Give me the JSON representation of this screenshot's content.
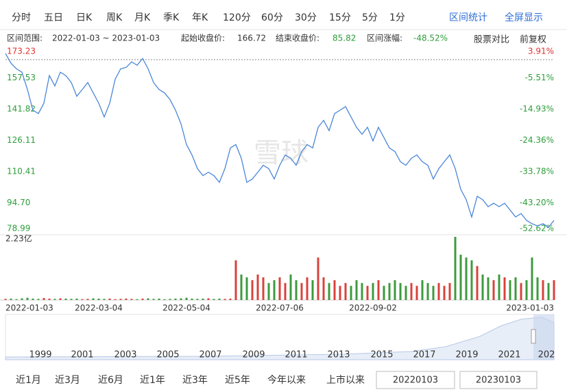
{
  "tabs": [
    "分时",
    "五日",
    "日K",
    "周K",
    "月K",
    "季K",
    "年K",
    "120分",
    "60分",
    "30分",
    "15分",
    "5分",
    "1分"
  ],
  "actions": [
    "区间统计",
    "全屏显示"
  ],
  "info": {
    "range_label": "区间范围:",
    "range": "2022-01-03 ~ 2023-01-03",
    "start_label": "起始收盘价:",
    "start_value": 166.72,
    "end_label": "结束收盘价:",
    "end_value": 85.82,
    "change_label": "区间涨幅:",
    "change_value": "-48.52%"
  },
  "toggles": [
    "股票对比",
    "前复权"
  ],
  "watermark": "雪球",
  "chart_data": {
    "type": "line",
    "color": "#4a86d8",
    "values": [
      169.8,
      164.9,
      162.1,
      160.4,
      151.7,
      141.3,
      139.6,
      144.8,
      158.7,
      153.5,
      160.4,
      158.7,
      155.2,
      148.3,
      151.7,
      155.2,
      150.0,
      144.8,
      137.9,
      144.8,
      156.9,
      162.1,
      162.8,
      165.6,
      163.9,
      167.3,
      162.1,
      155.2,
      151.7,
      150.0,
      146.6,
      141.3,
      134.4,
      124.0,
      118.8,
      111.9,
      108.4,
      110.1,
      108.4,
      105.0,
      111.9,
      122.3,
      124.0,
      117.1,
      105.0,
      106.7,
      110.1,
      113.6,
      111.9,
      106.7,
      113.6,
      118.8,
      117.1,
      113.6,
      120.5,
      124.0,
      122.3,
      132.7,
      136.2,
      131.0,
      139.6,
      141.3,
      143.1,
      137.9,
      132.7,
      129.2,
      132.7,
      125.8,
      132.7,
      127.5,
      122.3,
      120.5,
      115.4,
      113.6,
      117.1,
      118.8,
      115.4,
      113.6,
      106.7,
      111.9,
      115.4,
      118.8,
      111.9,
      101.5,
      96.3,
      87.6,
      98.0,
      96.3,
      92.8,
      94.5,
      92.8,
      94.5,
      91.1,
      87.6,
      89.3,
      85.9,
      84.2,
      83.1,
      84.2,
      82.4,
      85.9
    ],
    "xlim": [
      0,
      100
    ],
    "xticks": [
      {
        "value": 0,
        "label": "2022-01-03"
      },
      {
        "value": 17,
        "label": "2022-03-04"
      },
      {
        "value": 33,
        "label": "2022-05-04"
      },
      {
        "value": 50,
        "label": "2022-07-06"
      },
      {
        "value": 67,
        "label": "2022-09-02"
      },
      {
        "value": 100,
        "label": "2023-01-03"
      }
    ],
    "ylim": [
      78.99,
      173.23
    ],
    "yticks": [
      173.23,
      157.53,
      141.82,
      126.11,
      110.41,
      {
        "value": 94.7,
        "label": "94.70"
      },
      78.99
    ],
    "y2lim": [
      -52.62,
      3.91
    ],
    "y2ticks": [
      {
        "value": 3.91,
        "label": "3.91%"
      },
      {
        "value": -5.51,
        "label": "-5.51%"
      },
      {
        "value": -14.93,
        "label": "-14.93%"
      },
      {
        "value": -24.36,
        "label": "-24.36%"
      },
      {
        "value": -33.78,
        "label": "-33.78%"
      },
      {
        "value": -43.2,
        "label": "-43.20%"
      },
      {
        "value": -52.62,
        "label": "-52.62%"
      }
    ],
    "volume": {
      "values": [
        0.04,
        0.05,
        0.03,
        0.06,
        0.08,
        0.05,
        0.04,
        0.07,
        0.05,
        0.04,
        0.06,
        0.05,
        0.04,
        0.05,
        0.03,
        0.04,
        0.06,
        0.05,
        0.04,
        0.05,
        0.03,
        0.04,
        0.05,
        0.04,
        0.03,
        0.05,
        0.06,
        0.04,
        0.05,
        0.03,
        0.04,
        0.05,
        0.06,
        0.08,
        0.05,
        0.04,
        0.05,
        0.06,
        0.04,
        0.05,
        0.04,
        0.05,
        1.4,
        0.9,
        0.8,
        0.7,
        0.9,
        0.8,
        0.6,
        0.7,
        0.8,
        0.6,
        0.9,
        0.7,
        0.6,
        0.8,
        0.7,
        1.5,
        0.8,
        0.6,
        0.7,
        0.5,
        0.6,
        0.5,
        0.7,
        0.6,
        0.5,
        0.6,
        0.7,
        0.5,
        0.6,
        0.7,
        0.6,
        0.5,
        0.6,
        0.5,
        0.7,
        0.6,
        0.5,
        0.6,
        0.5,
        0.6,
        2.23,
        1.6,
        1.5,
        1.4,
        1.2,
        0.9,
        0.8,
        0.7,
        0.9,
        0.8,
        0.7,
        0.8,
        0.6,
        0.7,
        1.5,
        0.8,
        0.7,
        0.6,
        0.7
      ],
      "ylim": [
        0,
        2.23
      ],
      "yticks": [
        {
          "value": 2.23,
          "label": "2.23亿"
        }
      ]
    }
  },
  "navigator": {
    "years": [
      "1999",
      "2001",
      "2003",
      "2005",
      "2007",
      "2009",
      "2011",
      "2013",
      "2015",
      "2017",
      "2019",
      "2021",
      "202"
    ]
  },
  "ranges": [
    "近1月",
    "近3月",
    "近6月",
    "近1年",
    "近3年",
    "近5年",
    "今年以来",
    "上市以来"
  ],
  "inputs": [
    "20220103",
    "20230103"
  ]
}
